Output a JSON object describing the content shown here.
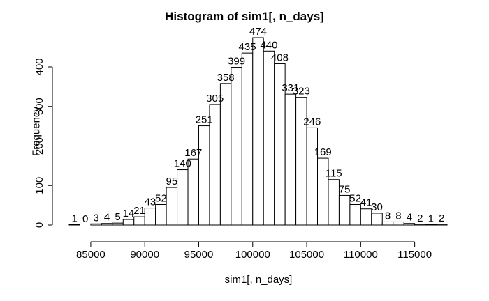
{
  "chart_data": {
    "type": "bar",
    "title": "Histogram of sim1[, n_days]",
    "xlabel": "sim1[, n_days]",
    "ylabel": "Frequency",
    "bin_start": 83000,
    "bin_width": 1000,
    "values": [
      1,
      0,
      3,
      4,
      5,
      14,
      21,
      43,
      52,
      95,
      140,
      167,
      251,
      305,
      358,
      399,
      435,
      474,
      440,
      408,
      331,
      323,
      246,
      169,
      115,
      75,
      52,
      41,
      30,
      8,
      8,
      4,
      2,
      1,
      2
    ],
    "x_ticks": [
      85000,
      90000,
      95000,
      100000,
      105000,
      110000,
      115000
    ],
    "y_ticks": [
      0,
      100,
      200,
      300,
      400
    ],
    "xlim": [
      83000,
      118000
    ],
    "ylim": [
      0,
      474
    ],
    "grid": false,
    "bar_fill": "#ffffff",
    "bar_stroke": "#000000"
  }
}
